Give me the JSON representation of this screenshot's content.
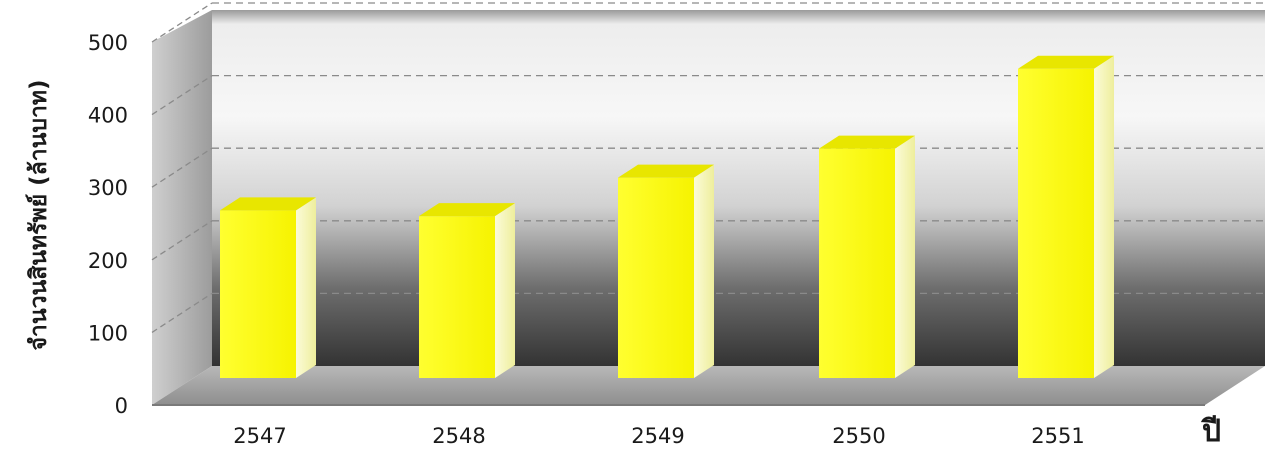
{
  "chart_data": {
    "type": "bar",
    "categories": [
      "2547",
      "2548",
      "2549",
      "2550",
      "2551"
    ],
    "series": [
      {
        "values": [
          275,
          267,
          320,
          360,
          470
        ]
      }
    ],
    "xlabel": "ปี",
    "ylabel": "จำนวนสินทรัพย์ (ล้านบาท)",
    "ylim": [
      0,
      500
    ],
    "yticks": [
      "0",
      "100",
      "200",
      "300",
      "400",
      "500"
    ],
    "grid": true,
    "legend": "none",
    "colors": {
      "bar": "#ffff14",
      "bar_top": "#e8e600",
      "bar_side": "#f3f3e6",
      "wall_dark": "#3c3c3c",
      "wall_light": "#f4f4f4",
      "floor": "#a9a9a9"
    }
  }
}
